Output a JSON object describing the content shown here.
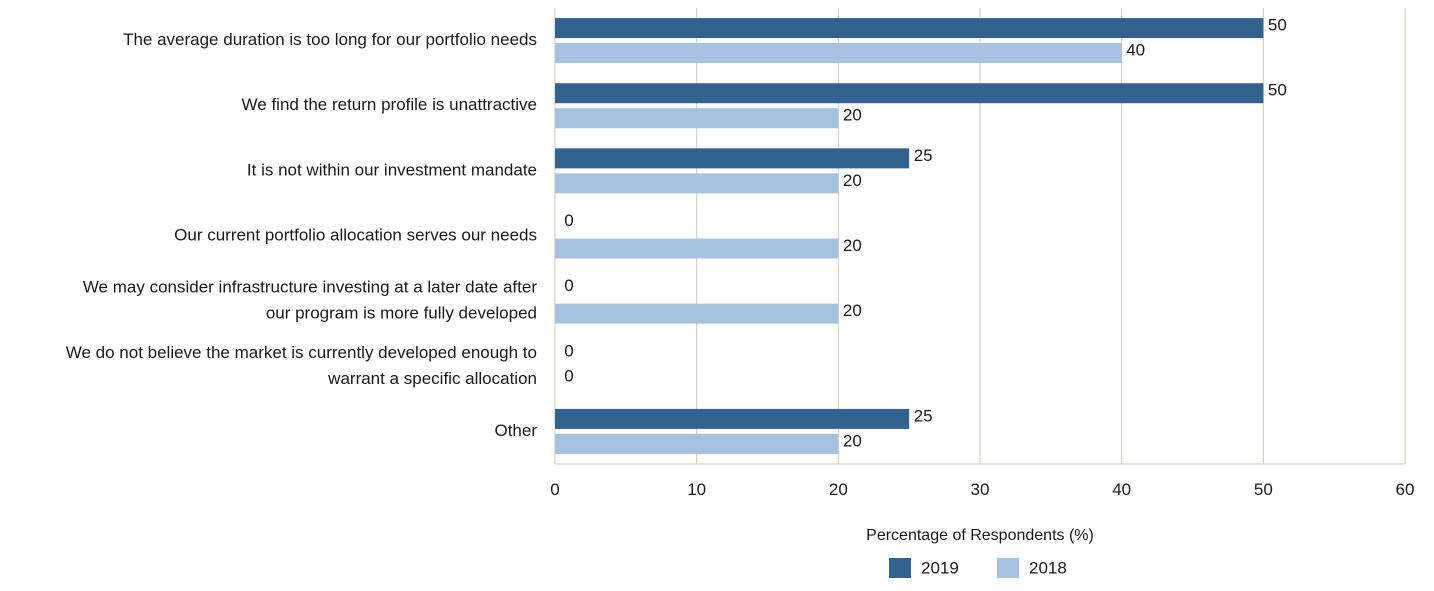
{
  "chart_data": {
    "type": "bar",
    "orientation": "horizontal",
    "categories": [
      [
        "The average duration is too long for our portfolio needs"
      ],
      [
        "We find the return profile is unattractive"
      ],
      [
        "It is not within our investment mandate"
      ],
      [
        "Our current portfolio allocation serves our needs"
      ],
      [
        "We may consider infrastructure investing at a later date after",
        "our program is more fully developed"
      ],
      [
        "We do not believe the market is currently developed enough to",
        "warrant a specific allocation"
      ],
      [
        "Other"
      ]
    ],
    "series": [
      {
        "name": "2019",
        "color": "#33628f",
        "values": [
          50,
          50,
          25,
          0,
          0,
          0,
          25
        ]
      },
      {
        "name": "2018",
        "color": "#a6c2e0",
        "values": [
          40,
          20,
          20,
          20,
          20,
          0,
          20
        ]
      }
    ],
    "xlabel": "Percentage of Respondents (%)",
    "xlim": [
      0,
      60
    ],
    "xticks": [
      0,
      10,
      20,
      30,
      40,
      50,
      60
    ],
    "grid": "vertical",
    "legend_position": "bottom"
  }
}
